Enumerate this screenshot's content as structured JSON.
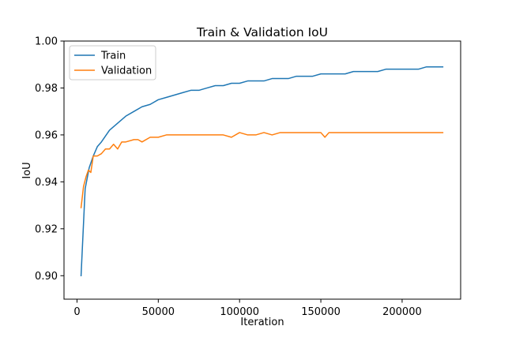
{
  "chart_data": {
    "type": "line",
    "title": "Train & Validation IoU",
    "xlabel": "Iteration",
    "ylabel": "IoU",
    "xlim": [
      -8000,
      236000
    ],
    "ylim": [
      0.89,
      1.0
    ],
    "xticks": [
      0,
      50000,
      100000,
      150000,
      200000
    ],
    "xtick_labels": [
      "0",
      "50000",
      "100000",
      "150000",
      "200000"
    ],
    "yticks": [
      0.9,
      0.92,
      0.94,
      0.96,
      0.98,
      1.0
    ],
    "ytick_labels": [
      "0.90",
      "0.92",
      "0.94",
      "0.96",
      "0.98",
      "1.00"
    ],
    "grid": false,
    "legend": "top-left",
    "series": [
      {
        "name": "Train",
        "color": "#1f77b4",
        "x": [
          2500,
          5000,
          7500,
          10000,
          12500,
          15000,
          20000,
          25000,
          30000,
          35000,
          40000,
          45000,
          50000,
          55000,
          60000,
          65000,
          70000,
          75000,
          80000,
          85000,
          90000,
          95000,
          100000,
          105000,
          110000,
          115000,
          120000,
          125000,
          130000,
          135000,
          140000,
          145000,
          150000,
          155000,
          160000,
          165000,
          170000,
          175000,
          180000,
          185000,
          190000,
          195000,
          200000,
          205000,
          210000,
          215000,
          220000,
          225000
        ],
        "values": [
          0.9,
          0.937,
          0.946,
          0.951,
          0.955,
          0.957,
          0.962,
          0.965,
          0.968,
          0.97,
          0.972,
          0.973,
          0.975,
          0.976,
          0.977,
          0.978,
          0.979,
          0.979,
          0.98,
          0.981,
          0.981,
          0.982,
          0.982,
          0.983,
          0.983,
          0.983,
          0.984,
          0.984,
          0.984,
          0.985,
          0.985,
          0.985,
          0.986,
          0.986,
          0.986,
          0.986,
          0.987,
          0.987,
          0.987,
          0.987,
          0.988,
          0.988,
          0.988,
          0.988,
          0.988,
          0.989,
          0.989,
          0.989
        ]
      },
      {
        "name": "Validation",
        "color": "#ff7f0e",
        "x": [
          2500,
          4000,
          5500,
          7000,
          8500,
          10000,
          12500,
          15000,
          17500,
          20000,
          22500,
          25000,
          27500,
          30000,
          35000,
          37500,
          40000,
          45000,
          50000,
          55000,
          60000,
          65000,
          70000,
          75000,
          80000,
          85000,
          90000,
          95000,
          100000,
          105000,
          110000,
          115000,
          120000,
          125000,
          130000,
          135000,
          140000,
          145000,
          150000,
          152500,
          155000,
          160000,
          165000,
          170000,
          175000,
          180000,
          185000,
          190000,
          195000,
          200000,
          205000,
          210000,
          215000,
          220000,
          225000
        ],
        "values": [
          0.929,
          0.938,
          0.942,
          0.945,
          0.944,
          0.951,
          0.951,
          0.952,
          0.954,
          0.954,
          0.956,
          0.954,
          0.957,
          0.957,
          0.958,
          0.958,
          0.957,
          0.959,
          0.959,
          0.96,
          0.96,
          0.96,
          0.96,
          0.96,
          0.96,
          0.96,
          0.96,
          0.959,
          0.961,
          0.96,
          0.96,
          0.961,
          0.96,
          0.961,
          0.961,
          0.961,
          0.961,
          0.961,
          0.961,
          0.959,
          0.961,
          0.961,
          0.961,
          0.961,
          0.961,
          0.961,
          0.961,
          0.961,
          0.961,
          0.961,
          0.961,
          0.961,
          0.961,
          0.961,
          0.961
        ]
      }
    ]
  }
}
